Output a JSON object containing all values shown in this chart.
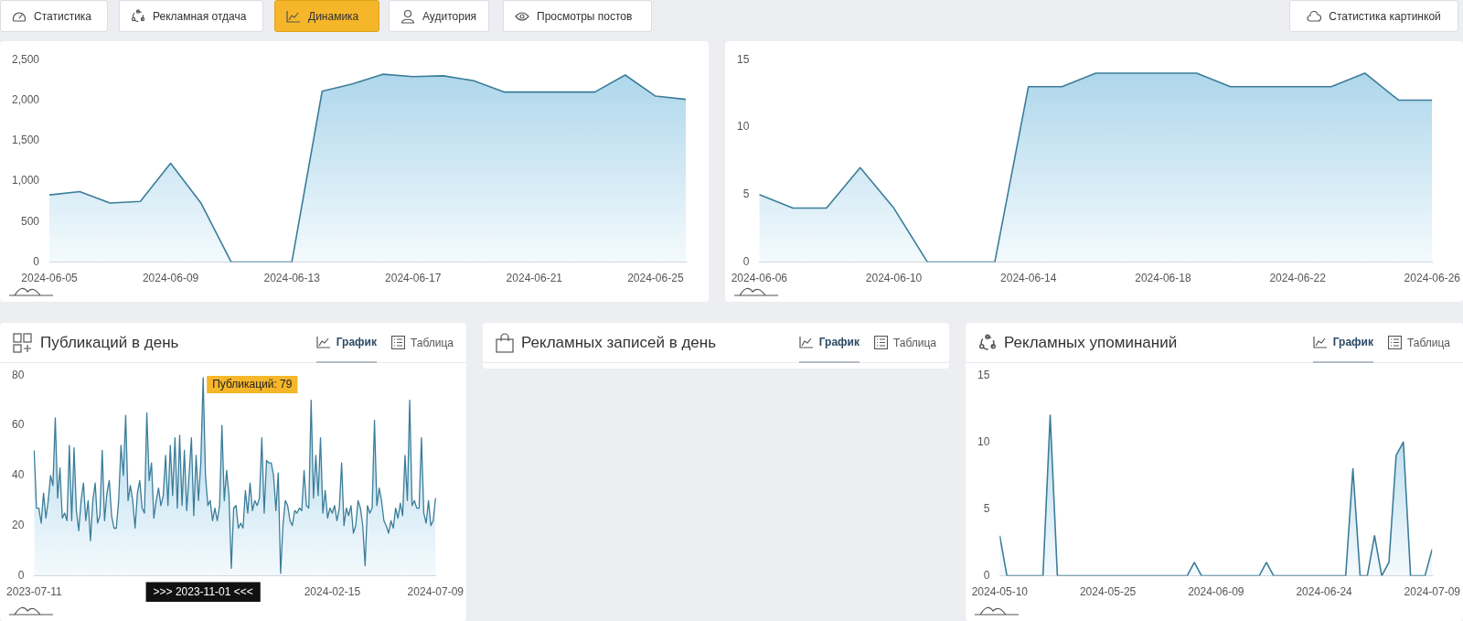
{
  "chart_data": [
    {
      "type": "other",
      "annotations": [
        "Статистика",
        "Рекламная отдача",
        "Динамика",
        "Аудитория",
        "Просмотры постов",
        "Статистика картинкой"
      ]
    },
    {
      "type": "area",
      "color": "#3b7d99",
      "x": [
        "2024-06-05",
        "2024-06-06",
        "2024-06-07",
        "2024-06-08",
        "2024-06-09",
        "2024-06-10",
        "2024-06-11",
        "2024-06-12",
        "2024-06-13",
        "2024-06-14",
        "2024-06-15",
        "2024-06-16",
        "2024-06-17",
        "2024-06-18",
        "2024-06-19",
        "2024-06-20",
        "2024-06-21",
        "2024-06-22",
        "2024-06-23",
        "2024-06-24",
        "2024-06-25",
        "2024-06-26"
      ],
      "values": [
        830,
        870,
        730,
        750,
        1220,
        730,
        0,
        0,
        0,
        2110,
        2200,
        2320,
        2290,
        2300,
        2240,
        2100,
        2100,
        2100,
        2100,
        2310,
        2050,
        2010
      ],
      "xlim": [
        "2024-06-05",
        "2024-06-26"
      ],
      "xticks": [
        "2024-06-05",
        "2024-06-09",
        "2024-06-13",
        "2024-06-17",
        "2024-06-21",
        "2024-06-25"
      ],
      "ylim": [
        0,
        2500
      ],
      "yticks": [
        0,
        500,
        {
          "value": 1000,
          "label": "1,000"
        },
        {
          "value": 1500,
          "label": "1,500"
        },
        {
          "value": 2000,
          "label": "2,000"
        },
        {
          "value": 2500,
          "label": "2,500"
        }
      ]
    },
    {
      "type": "area",
      "color": "#3b7d99",
      "x": [
        "2024-06-06",
        "2024-06-07",
        "2024-06-08",
        "2024-06-09",
        "2024-06-10",
        "2024-06-11",
        "2024-06-12",
        "2024-06-13",
        "2024-06-14",
        "2024-06-15",
        "2024-06-16",
        "2024-06-17",
        "2024-06-18",
        "2024-06-19",
        "2024-06-20",
        "2024-06-21",
        "2024-06-22",
        "2024-06-23",
        "2024-06-24",
        "2024-06-25",
        "2024-06-26"
      ],
      "values": [
        5,
        4,
        4,
        7,
        4,
        0,
        0,
        0,
        13,
        13,
        14,
        14,
        14,
        14,
        13,
        13,
        13,
        13,
        14,
        12,
        12
      ],
      "xlim": [
        "2024-06-06",
        "2024-06-26"
      ],
      "xticks": [
        "2024-06-06",
        "2024-06-10",
        "2024-06-14",
        "2024-06-18",
        "2024-06-22",
        "2024-06-26"
      ],
      "ylim": [
        0,
        15
      ],
      "yticks": [
        0,
        5,
        10,
        15
      ]
    },
    {
      "type": "area",
      "title": "Публикаций в день",
      "color": "#3b7d99",
      "categories": [
        "2023-07-11",
        null,
        null,
        null,
        null,
        null,
        null,
        null,
        null,
        null,
        null,
        null,
        null,
        null,
        null,
        null,
        null,
        null,
        null,
        null,
        null,
        null,
        null,
        null,
        null,
        null,
        null,
        null,
        null,
        null,
        null,
        null,
        null,
        null,
        null,
        null,
        null,
        null,
        null,
        null,
        null,
        null,
        null,
        null,
        null,
        null,
        null,
        null,
        null,
        null,
        null,
        null,
        null,
        null,
        null,
        null,
        null,
        null,
        null,
        null,
        null,
        null,
        null,
        null,
        null,
        null,
        null,
        null,
        null,
        null,
        null,
        null,
        ">>> 2023-11-01 <<<",
        null,
        null,
        null,
        null,
        null,
        null,
        null,
        null,
        null,
        null,
        null,
        null,
        null,
        null,
        null,
        null,
        null,
        null,
        null,
        null,
        null,
        null,
        null,
        null,
        null,
        null,
        null,
        null,
        null,
        null,
        null,
        null,
        null,
        null,
        null,
        null,
        null,
        null,
        null,
        null,
        null,
        null,
        null,
        null,
        null,
        null,
        null,
        null,
        null,
        null,
        null,
        null,
        null,
        null,
        "2024-02-15",
        null,
        null,
        null,
        null,
        null,
        null,
        null,
        null,
        null,
        null,
        null,
        null,
        null,
        null,
        null,
        null,
        null,
        null,
        null,
        null,
        null,
        null,
        null,
        null,
        null,
        null,
        null,
        null,
        null,
        null,
        null,
        null,
        null,
        null,
        null,
        null,
        null,
        null,
        null,
        null,
        null,
        null,
        null,
        "2024-07-09"
      ],
      "values": [
        50,
        27,
        27,
        21,
        33,
        23,
        30,
        40,
        36,
        63,
        31,
        43,
        23,
        25,
        22,
        52,
        22,
        51,
        26,
        18,
        30,
        37,
        22,
        30,
        14,
        30,
        37,
        21,
        24,
        50,
        22,
        33,
        38,
        24,
        19,
        19,
        30,
        52,
        40,
        64,
        30,
        36,
        30,
        19,
        33,
        38,
        27,
        25,
        65,
        38,
        45,
        23,
        30,
        35,
        28,
        32,
        48,
        28,
        52,
        32,
        55,
        27,
        56,
        28,
        50,
        26,
        40,
        55,
        24,
        48,
        30,
        45,
        79,
        40,
        28,
        30,
        22,
        27,
        22,
        28,
        60,
        30,
        42,
        32,
        3,
        27,
        28,
        19,
        21,
        19,
        34,
        25,
        37,
        26,
        30,
        28,
        31,
        55,
        25,
        46,
        45,
        45,
        40,
        26,
        41,
        1,
        20,
        30,
        28,
        22,
        20,
        26,
        25,
        27,
        26,
        42,
        28,
        27,
        70,
        31,
        48,
        32,
        55,
        25,
        34,
        23,
        27,
        25,
        28,
        22,
        27,
        45,
        20,
        27,
        24,
        28,
        17,
        20,
        30,
        27,
        20,
        4,
        28,
        25,
        27,
        62,
        28,
        35,
        30,
        22,
        20,
        17,
        22,
        19,
        27,
        23,
        29,
        24,
        48,
        30,
        70,
        28,
        30,
        27,
        27,
        55,
        25,
        21,
        30,
        20,
        22,
        31
      ],
      "ylim": [
        0,
        80
      ],
      "yticks": [
        0,
        20,
        40,
        60,
        80
      ],
      "annotations": [
        "График",
        "Таблица",
        {
          "text": "Публикаций: 79",
          "x": ">>> 2023-11-01 <<<",
          "y": 79
        }
      ]
    },
    {
      "type": "other",
      "title": "Рекламных записей в день",
      "annotations": [
        "График",
        "Таблица"
      ]
    },
    {
      "type": "area",
      "title": "Рекламных упоминаний",
      "color": "#3b7d99",
      "x": [
        "2024-05-10",
        "2024-05-11",
        "2024-05-16",
        "2024-05-17",
        "2024-05-18",
        "2024-06-05",
        "2024-06-06",
        "2024-06-07",
        "2024-06-15",
        "2024-06-16",
        "2024-06-17",
        "2024-06-27",
        "2024-06-28",
        "2024-06-29",
        "2024-06-30",
        "2024-07-01",
        "2024-07-02",
        "2024-07-03",
        "2024-07-04",
        "2024-07-05",
        "2024-07-06",
        "2024-07-08",
        "2024-07-09"
      ],
      "values": [
        3,
        0,
        0,
        12,
        0,
        0,
        1,
        0,
        0,
        1,
        0,
        0,
        8,
        0,
        0,
        3,
        0,
        1,
        9,
        10,
        0,
        0,
        2
      ],
      "xlim": [
        "2024-05-10",
        "2024-07-09"
      ],
      "xticks": [
        "2024-05-10",
        "2024-05-25",
        "2024-06-09",
        "2024-06-24",
        "2024-07-09"
      ],
      "ylim": [
        0,
        15
      ],
      "yticks": [
        0,
        5,
        10,
        15
      ],
      "annotations": [
        "График",
        "Таблица"
      ]
    }
  ]
}
